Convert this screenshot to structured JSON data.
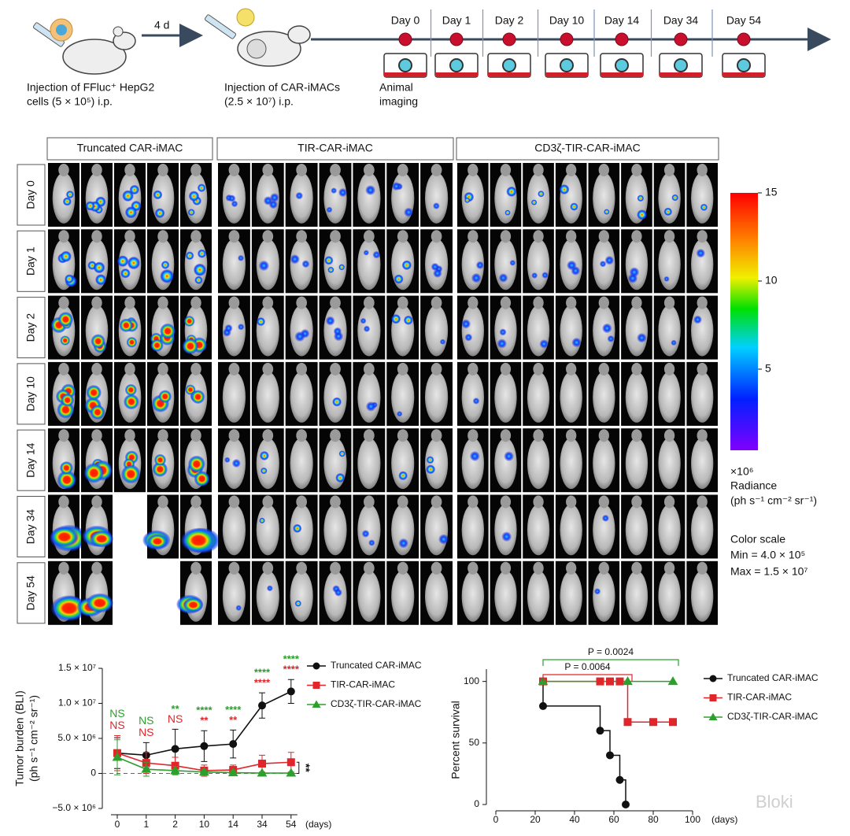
{
  "schematic": {
    "step1": [
      "Injection of FFluc⁺ HepG2",
      "cells    (5 × 10⁵) i.p."
    ],
    "interval": "4 d",
    "step2": [
      "Injection of CAR-iMACs",
      "(2.5 × 10⁷) i.p."
    ],
    "timeline": [
      "Day 0",
      "Day 1",
      "Day 2",
      "Day 10",
      "Day 14",
      "Day 34",
      "Day 54"
    ],
    "imaging": [
      "Animal",
      "imaging"
    ]
  },
  "imaging_grid": {
    "groups": [
      "Truncated CAR-iMAC",
      "TIR-CAR-iMAC",
      "CD3ζ-TIR-CAR-iMAC"
    ],
    "rows": [
      "Day 0",
      "Day 1",
      "Day 2",
      "Day 10",
      "Day 14",
      "Day 34",
      "Day 54"
    ]
  },
  "colorbar": {
    "lim": [
      0.4,
      15
    ],
    "ticks": [
      5,
      10,
      15
    ],
    "lines": [
      "×10⁶",
      "Radiance",
      "(ph s⁻¹ cm⁻² sr⁻¹)",
      "Color scale",
      "Min = 4.0 × 10⁵",
      "Max = 1.5 × 10⁷"
    ]
  },
  "chart_data": [
    {
      "type": "line",
      "ylabel": [
        "Tumor burden (BLI)",
        "(ph s⁻¹ cm⁻² sr⁻¹)"
      ],
      "xlabel": "(days)",
      "categories": [
        "0",
        "1",
        "2",
        "10",
        "14",
        "34",
        "54"
      ],
      "ylim": [
        -5000000,
        15000000
      ],
      "yticks": [
        {
          "value": -5000000,
          "label": "−5.0 × 10⁶"
        },
        0,
        {
          "value": 5000000,
          "label": "5.0 × 10⁶"
        },
        {
          "value": 10000000,
          "label": "1.0 × 10⁷"
        },
        {
          "value": 15000000,
          "label": "1.5 × 10⁷"
        }
      ],
      "series": [
        {
          "name": "Truncated CAR-iMAC",
          "color": "#111111",
          "marker": "circle",
          "values": [
            2900000,
            2600000,
            3500000,
            3900000,
            4200000,
            9700000,
            11700000
          ],
          "errors": [
            2200000,
            1800000,
            2800000,
            2200000,
            2000000,
            1800000,
            1700000
          ]
        },
        {
          "name": "TIR-CAR-iMAC",
          "color": "#e0262b",
          "marker": "square",
          "values": [
            2900000,
            1500000,
            1100000,
            400000,
            500000,
            1400000,
            1600000
          ],
          "errors": [
            2500000,
            1500000,
            1200000,
            800000,
            700000,
            1200000,
            1400000
          ]
        },
        {
          "name": "CD3ζ-TIR-CAR-iMAC",
          "color": "#2ca02c",
          "marker": "triangle",
          "values": [
            2300000,
            600000,
            400000,
            200000,
            100000,
            50000,
            50000
          ],
          "errors": [
            2500000,
            1000000,
            600000,
            300000,
            300000,
            100000,
            100000
          ]
        }
      ],
      "significance": [
        {
          "color": "#2ca02c",
          "labels": [
            "NS",
            "NS",
            "**",
            "****",
            "****",
            "****",
            "****"
          ]
        },
        {
          "color": "#e0262b",
          "labels": [
            "NS",
            "NS",
            "NS",
            "**",
            "**",
            "****",
            "****"
          ]
        }
      ],
      "end_annotation": "**"
    },
    {
      "type": "step",
      "ylabel": "Percent survival",
      "xlabel": "(days)",
      "xlim": [
        0,
        100
      ],
      "xticks": [
        0,
        20,
        40,
        60,
        80,
        100
      ],
      "ylim": [
        0,
        110
      ],
      "yticks": [
        0,
        50,
        100
      ],
      "series": [
        {
          "name": "Truncated CAR-iMAC",
          "color": "#111111",
          "marker": "circle",
          "x": [
            24,
            24,
            53,
            58,
            63,
            66
          ],
          "values": [
            100,
            80,
            60,
            40,
            20,
            0
          ]
        },
        {
          "name": "TIR-CAR-iMAC",
          "color": "#e0262b",
          "marker": "square",
          "x": [
            24,
            53,
            58,
            63,
            67,
            80,
            90
          ],
          "values": [
            100,
            100,
            100,
            100,
            67,
            67,
            67
          ]
        },
        {
          "name": "CD3ζ-TIR-CAR-iMAC",
          "color": "#2ca02c",
          "marker": "triangle",
          "x": [
            24,
            67,
            90
          ],
          "values": [
            100,
            100,
            100
          ]
        }
      ],
      "annotations": [
        {
          "text": "P = 0.0024",
          "color": "#2ca02c"
        },
        {
          "text": "P = 0.0064",
          "color": "#e0262b"
        }
      ],
      "watermark": "Bloki"
    }
  ]
}
